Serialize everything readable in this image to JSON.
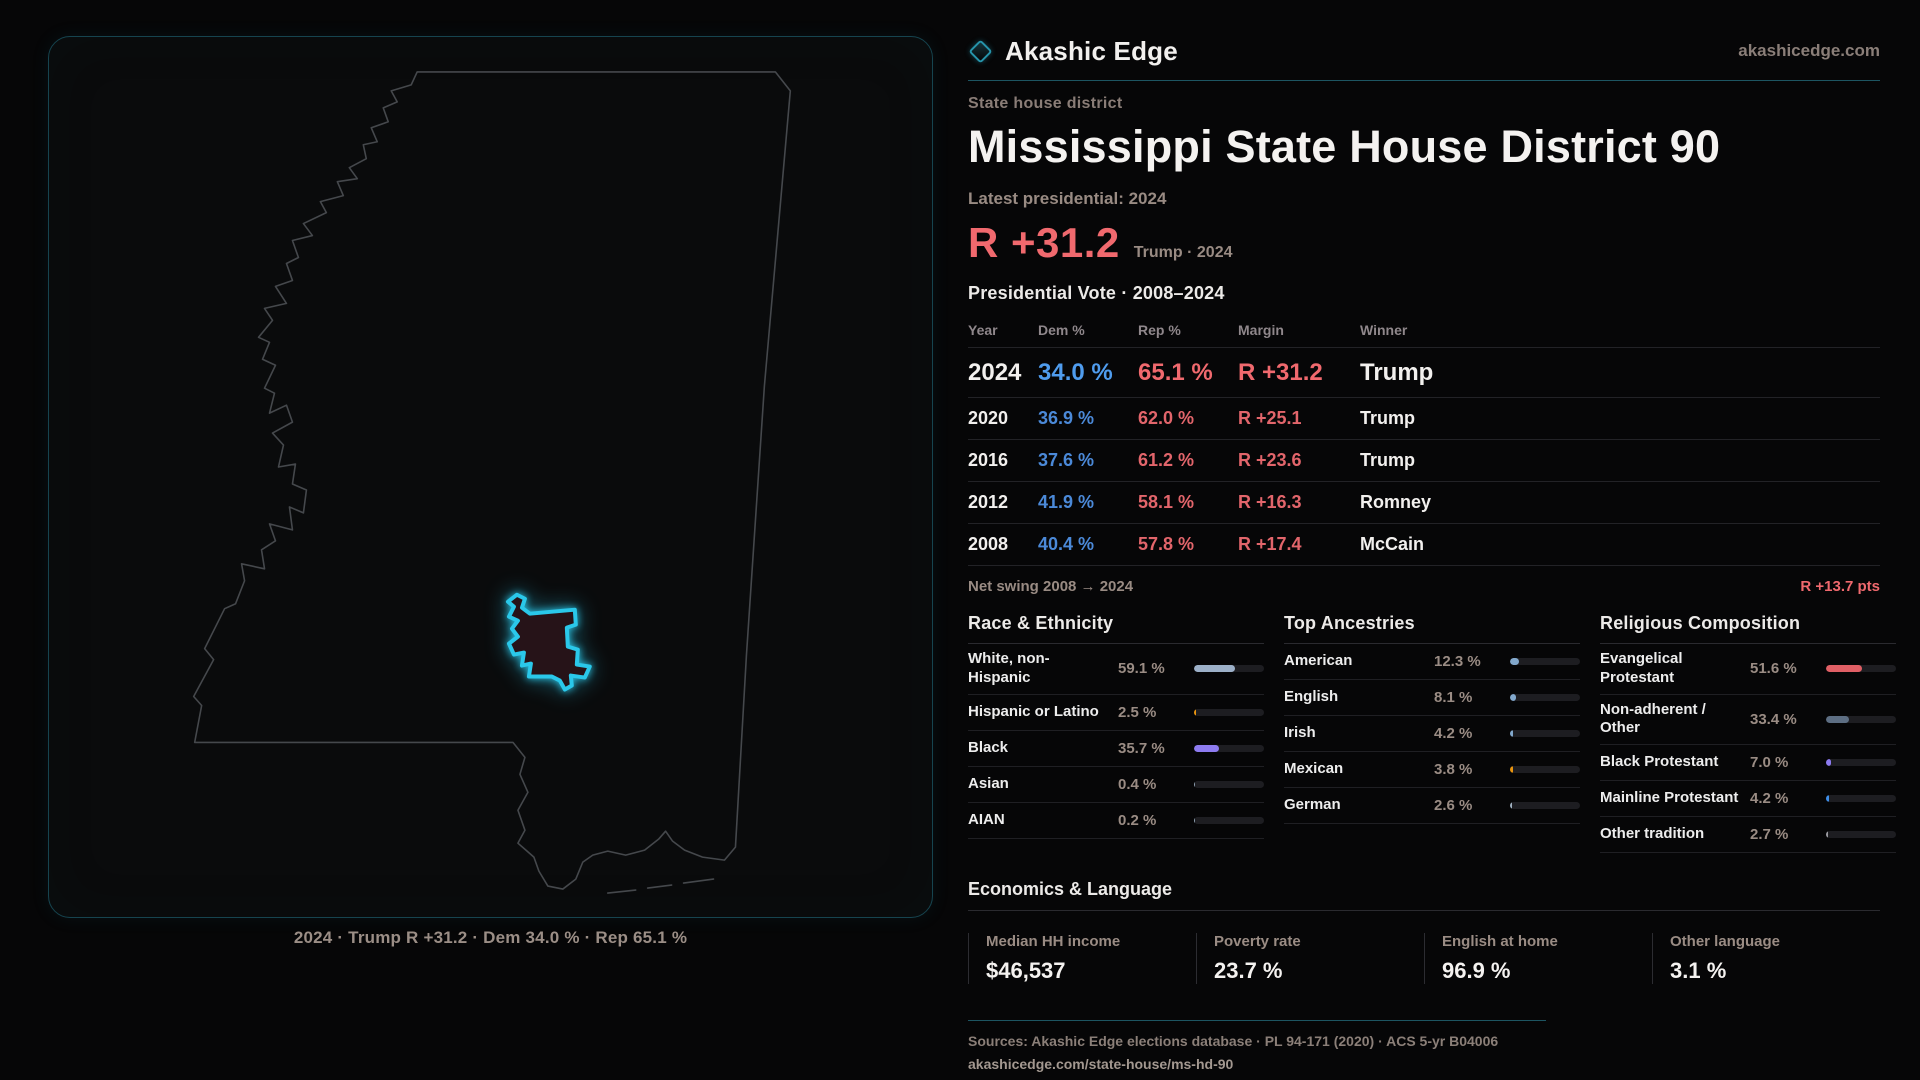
{
  "colors": {
    "bg": "#060607",
    "accent": "#2ac8ea",
    "teal-line": "#1d5562",
    "dem-blue": "#4f9cee",
    "rep-red": "#f0696e",
    "state-outline": "#45484c"
  },
  "brand": {
    "name": "Akashic Edge",
    "domain": "akashicedge.com",
    "logo_icon": "diamond-outline-icon"
  },
  "page": {
    "eyebrow": "State house district",
    "title": "Mississippi State House District 90",
    "latest_label": "Latest presidential: 2024",
    "hero_margin": "R +31.2",
    "hero_sub": "Trump · 2024"
  },
  "map": {
    "caption": "2024 · Trump  R +31.2 · Dem 34.0 % · Rep 65.1 %",
    "state": "Mississippi",
    "district_outline_color": "#2ac8ea"
  },
  "vote_table": {
    "title": "Presidential Vote · 2008–2024",
    "columns": [
      "Year",
      "Dem %",
      "Rep %",
      "Margin",
      "Winner"
    ],
    "rows": [
      {
        "year": "2024",
        "dem": "34.0 %",
        "rep": "65.1 %",
        "margin": "R +31.2",
        "winner": "Trump"
      },
      {
        "year": "2020",
        "dem": "36.9 %",
        "rep": "62.0 %",
        "margin": "R +25.1",
        "winner": "Trump"
      },
      {
        "year": "2016",
        "dem": "37.6 %",
        "rep": "61.2 %",
        "margin": "R +23.6",
        "winner": "Trump"
      },
      {
        "year": "2012",
        "dem": "41.9 %",
        "rep": "58.1 %",
        "margin": "R +16.3",
        "winner": "Romney"
      },
      {
        "year": "2008",
        "dem": "40.4 %",
        "rep": "57.8 %",
        "margin": "R +17.4",
        "winner": "McCain"
      }
    ],
    "net_swing_label": "Net swing 2008 → 2024",
    "net_swing_value": "R +13.7 pts"
  },
  "demographics": [
    {
      "title": "Race & Ethnicity",
      "rows": [
        {
          "label": "White, non-Hispanic",
          "value": "59.1 %",
          "pct": 59.1,
          "color": "#9cb0c8"
        },
        {
          "label": "Hispanic or Latino",
          "value": "2.5 %",
          "pct": 2.5,
          "color": "#e8940f"
        },
        {
          "label": "Black",
          "value": "35.7 %",
          "pct": 35.7,
          "color": "#8d7bf0"
        },
        {
          "label": "Asian",
          "value": "0.4 %",
          "pct": 0.4,
          "color": "#8fa0b0"
        },
        {
          "label": "AIAN",
          "value": "0.2 %",
          "pct": 0.2,
          "color": "#8fa0b0"
        }
      ]
    },
    {
      "title": "Top Ancestries",
      "rows": [
        {
          "label": "American",
          "value": "12.3 %",
          "pct": 12.3,
          "color": "#82a8cc"
        },
        {
          "label": "English",
          "value": "8.1 %",
          "pct": 8.1,
          "color": "#82a8cc"
        },
        {
          "label": "Irish",
          "value": "4.2 %",
          "pct": 4.2,
          "color": "#82a8cc"
        },
        {
          "label": "Mexican",
          "value": "3.8 %",
          "pct": 3.8,
          "color": "#e8940f"
        },
        {
          "label": "German",
          "value": "2.6 %",
          "pct": 2.6,
          "color": "#9fb0c0"
        }
      ]
    },
    {
      "title": "Religious Composition",
      "rows": [
        {
          "label": "Evangelical Protestant",
          "value": "51.6 %",
          "pct": 51.6,
          "color": "#e05f65"
        },
        {
          "label": "Non-adherent / Other",
          "value": "33.4 %",
          "pct": 33.4,
          "color": "#5d6e83"
        },
        {
          "label": "Black Protestant",
          "value": "7.0 %",
          "pct": 7.0,
          "color": "#8d7bf0"
        },
        {
          "label": "Mainline Protestant",
          "value": "4.2 %",
          "pct": 4.2,
          "color": "#3e8ee8"
        },
        {
          "label": "Other tradition",
          "value": "2.7 %",
          "pct": 2.7,
          "color": "#9a9aa0"
        }
      ]
    }
  ],
  "economics": {
    "title": "Economics & Language",
    "stats": [
      {
        "label": "Median HH income",
        "value": "$46,537"
      },
      {
        "label": "Poverty rate",
        "value": "23.7 %"
      },
      {
        "label": "English at home",
        "value": "96.9 %"
      },
      {
        "label": "Other language",
        "value": "3.1 %"
      }
    ]
  },
  "footer": {
    "sources": "Sources: Akashic Edge elections database · PL 94-171 (2020) · ACS 5-yr B04006",
    "url": "akashicedge.com/state-house/ms-hd-90"
  }
}
